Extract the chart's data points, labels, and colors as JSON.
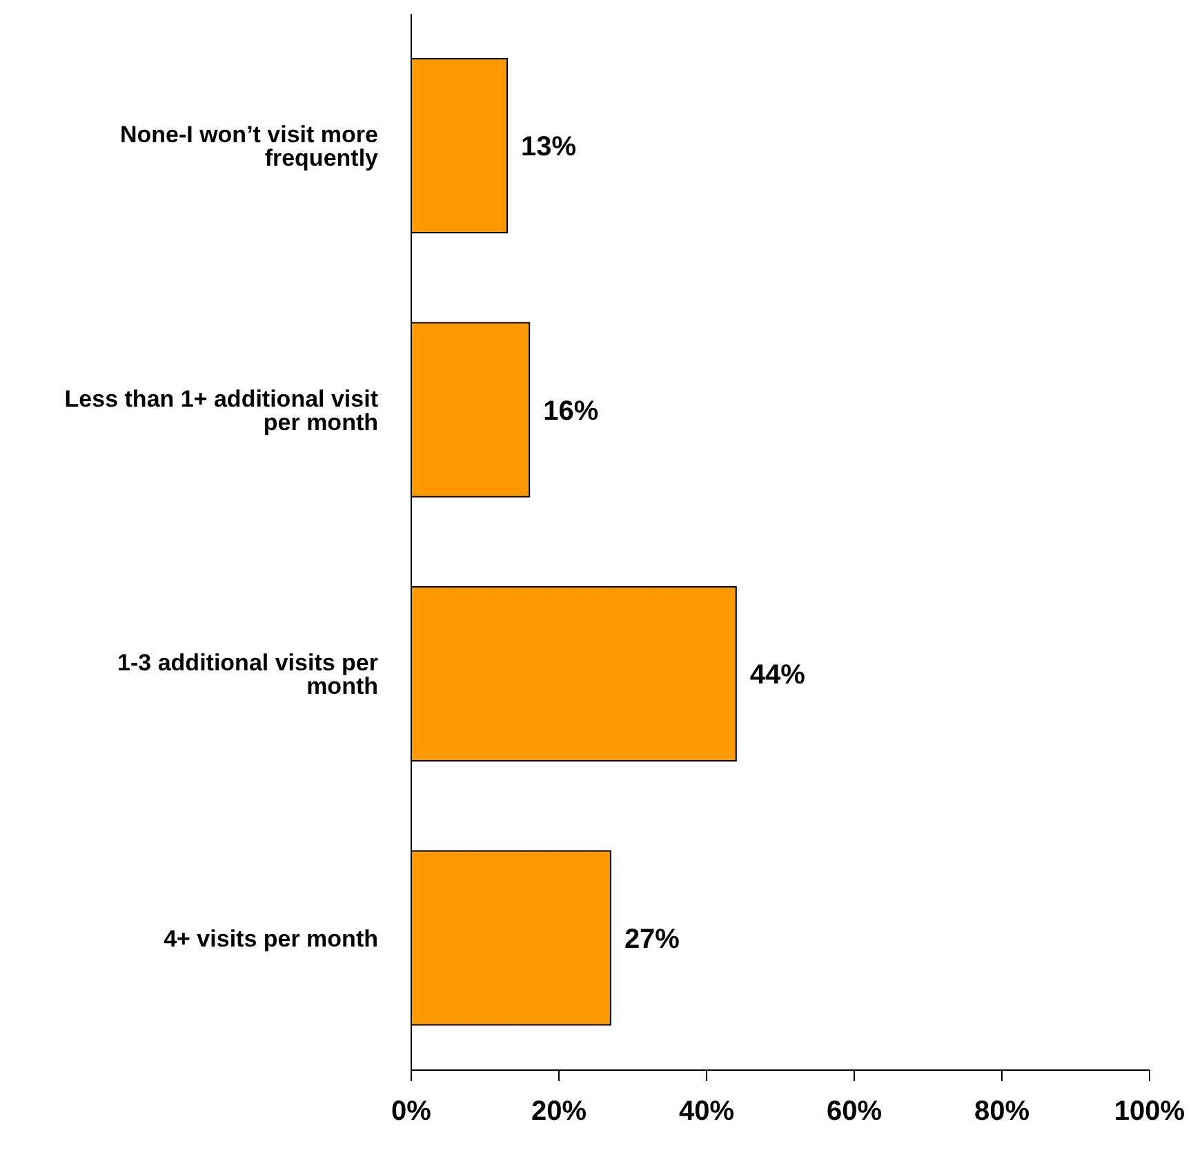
{
  "chart_data": {
    "type": "bar",
    "orientation": "horizontal",
    "categories": [
      "None-I won’t visit more frequently",
      "Less than 1+ additional visit per month",
      "1-3  additional visits per month",
      "4+ visits per month"
    ],
    "values": [
      13,
      16,
      44,
      27
    ],
    "value_labels": [
      "13%",
      "16%",
      "44%",
      "27%"
    ],
    "color": "#ff9900",
    "xlim": [
      0,
      100
    ],
    "xticks": [
      {
        "value": 0,
        "label": "0%"
      },
      {
        "value": 20,
        "label": "20%"
      },
      {
        "value": 40,
        "label": "40%"
      },
      {
        "value": 60,
        "label": "60%"
      },
      {
        "value": 80,
        "label": "80%"
      },
      {
        "value": 100,
        "label": "100%"
      }
    ],
    "grid": false,
    "legend": false
  }
}
